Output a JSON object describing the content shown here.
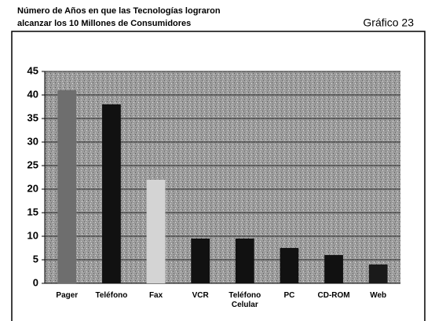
{
  "chart_data": {
    "type": "bar",
    "title": [
      "Número de Años en que las Tecnologías lograron",
      "alcanzar los 10 Millones de Consumidores"
    ],
    "figure_label": "Gráfico 23",
    "categories": [
      "Pager",
      "Teléfono",
      "Fax",
      "VCR",
      "Teléfono Celular",
      "PC",
      "CD-ROM",
      "Web"
    ],
    "values": [
      41,
      38,
      22,
      9.5,
      9.5,
      7.5,
      6,
      4
    ],
    "colors": [
      "#6e6e6e",
      "#111111",
      "#d4d4d4",
      "#111111",
      "#111111",
      "#111111",
      "#111111",
      "#1a1a1a"
    ],
    "ylim": [
      0,
      45
    ],
    "yticks": [
      0,
      5,
      10,
      15,
      20,
      25,
      30,
      35,
      40,
      45
    ],
    "grid": true
  }
}
